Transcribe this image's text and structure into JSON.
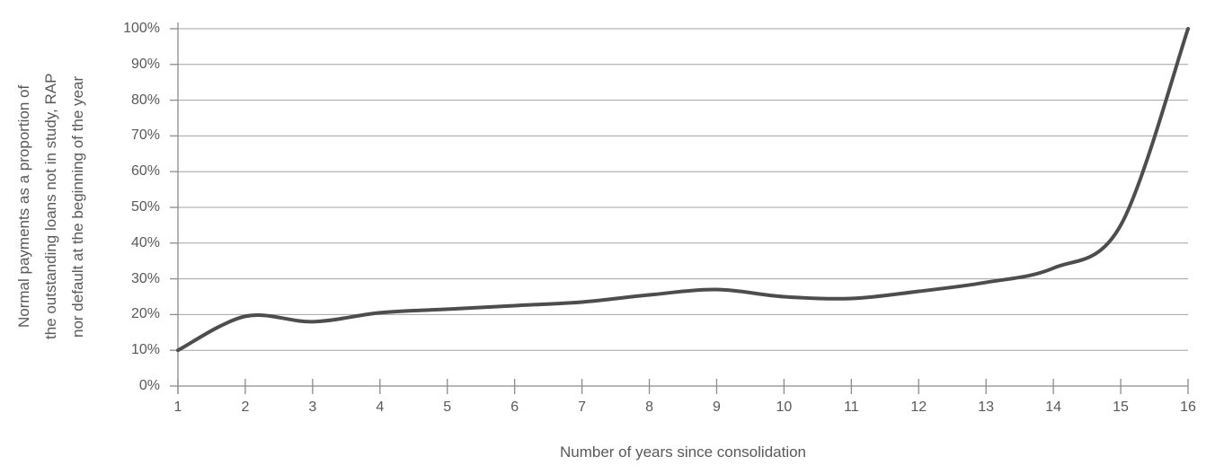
{
  "chart_data": {
    "type": "line",
    "xlabel": "Number of years since consolidation",
    "ylabel": "Normal payments as a proportion of the outstanding loans not in study, RAP nor default at the beginning of the year",
    "ylabel_lines": [
      "Normal payments as a proportion of",
      "the outstanding loans not in study, RAP",
      "nor default at the beginning of the year"
    ],
    "x": [
      1,
      2,
      3,
      4,
      5,
      6,
      7,
      8,
      9,
      10,
      11,
      12,
      13,
      14,
      15,
      16
    ],
    "x_tick_labels": [
      "1",
      "2",
      "3",
      "4",
      "5",
      "6",
      "7",
      "8",
      "9",
      "10",
      "11",
      "12",
      "13",
      "14",
      "15",
      "16"
    ],
    "values": [
      10,
      19.5,
      18,
      20.5,
      21.5,
      22.5,
      23.5,
      25.5,
      27,
      25,
      24.5,
      26.5,
      29,
      33,
      45,
      100
    ],
    "y_tick_values": [
      0,
      10,
      20,
      30,
      40,
      50,
      60,
      70,
      80,
      90,
      100
    ],
    "y_tick_labels": [
      "0%",
      "10%",
      "20%",
      "30%",
      "40%",
      "50%",
      "60%",
      "70%",
      "80%",
      "90%",
      "100%"
    ],
    "xlim": [
      1,
      16
    ],
    "ylim": [
      0,
      100
    ],
    "unit": "%",
    "grid": "horizontal",
    "legend": "none",
    "smooth": true,
    "colors": {
      "line": "#4d4d4d",
      "gridline": "#a3a3a3",
      "axis": "#8c8c8c",
      "text": "#595959",
      "background": "#ffffff"
    }
  }
}
